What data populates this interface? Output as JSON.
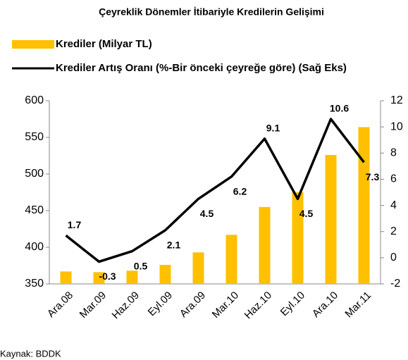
{
  "chart_data": {
    "type": "bar",
    "title": "Çeyreklik Dönemler İtibariyle Kredilerin Gelişimi",
    "categories": [
      "Ara.08",
      "Mar.09",
      "Haz.09",
      "Eyl.09",
      "Ara.09",
      "Mar.10",
      "Haz.10",
      "Eyl.10",
      "Ara.10",
      "Mar.11"
    ],
    "series": [
      {
        "name": "Krediler (Milyar TL)",
        "type": "bar",
        "color": "#FFC000",
        "values": [
          367,
          366,
          368,
          376,
          393,
          417,
          455,
          475,
          526,
          564
        ]
      },
      {
        "name": "Krediler Artış Oranı (%-Bir önceki çeyreğe göre) (Sağ Eks)",
        "type": "line",
        "color": "#000000",
        "axis": "y2",
        "values": [
          1.7,
          -0.3,
          0.5,
          2.1,
          4.5,
          6.2,
          9.1,
          4.5,
          10.6,
          7.3
        ]
      }
    ],
    "ylim": [
      350,
      600
    ],
    "yticks": [
      350,
      400,
      450,
      500,
      550,
      600
    ],
    "y2lim": [
      -2,
      12
    ],
    "y2ticks": [
      -2,
      0,
      2,
      4,
      6,
      8,
      10,
      12
    ],
    "source": "Kaynak: BDDK"
  }
}
